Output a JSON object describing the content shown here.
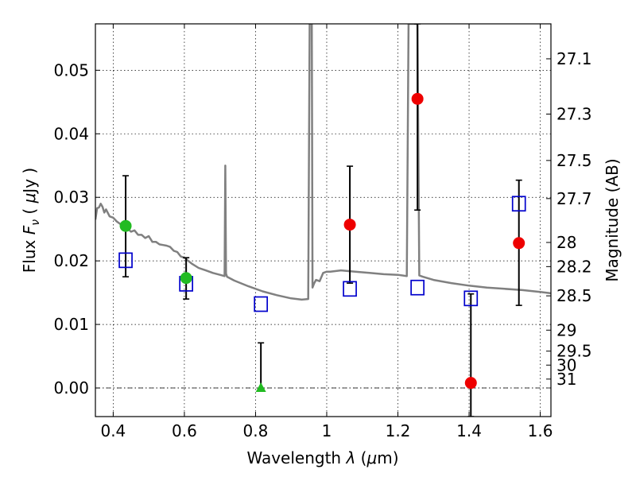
{
  "chart_data": {
    "type": "scatter",
    "xlabel": "Wavelength  λ (μm)",
    "ylabel": "Flux  F_ν  ( μJy )",
    "ylabel_parts": {
      "pre": "Flux ",
      "sym": "F",
      "sub": "ν",
      "post": "  ( ",
      "mu": "μ",
      "unit": "Jy )"
    },
    "xlabel_parts": {
      "pre": "Wavelength  ",
      "sym": "λ",
      "open": " (",
      "mu": "μ",
      "unit": "m)"
    },
    "y2label": "Magnitude (AB)",
    "xlim": [
      0.35,
      1.63
    ],
    "ylim": [
      -0.0045,
      0.0573
    ],
    "grid": true,
    "x_ticks": [
      {
        "value": 0.4,
        "label": "0.4"
      },
      {
        "value": 0.6,
        "label": "0.6"
      },
      {
        "value": 0.8,
        "label": "0.8"
      },
      {
        "value": 1.0,
        "label": "1"
      },
      {
        "value": 1.2,
        "label": "1.2"
      },
      {
        "value": 1.4,
        "label": "1.4"
      },
      {
        "value": 1.6,
        "label": "1.6"
      }
    ],
    "y_ticks": [
      {
        "value": 0.0,
        "label": "0.00"
      },
      {
        "value": 0.01,
        "label": "0.01"
      },
      {
        "value": 0.02,
        "label": "0.02"
      },
      {
        "value": 0.03,
        "label": "0.03"
      },
      {
        "value": 0.04,
        "label": "0.04"
      },
      {
        "value": 0.05,
        "label": "0.05"
      }
    ],
    "y2_ticks": [
      {
        "flux": 0.0518,
        "label": "27.1"
      },
      {
        "flux": 0.0431,
        "label": "27.3"
      },
      {
        "flux": 0.0358,
        "label": "27.5"
      },
      {
        "flux": 0.0298,
        "label": "27.7"
      },
      {
        "flux": 0.0229,
        "label": "28"
      },
      {
        "flux": 0.0191,
        "label": "28.2"
      },
      {
        "flux": 0.0145,
        "label": "28.5"
      },
      {
        "flux": 0.0091,
        "label": "29"
      },
      {
        "flux": 0.0058,
        "label": "29.5"
      },
      {
        "flux": 0.0036,
        "label": "30"
      },
      {
        "flux": 0.0014,
        "label": "31"
      }
    ],
    "model_spectrum": {
      "color": "#808080",
      "x": [
        0.35,
        0.355,
        0.36,
        0.365,
        0.37,
        0.375,
        0.38,
        0.39,
        0.4,
        0.41,
        0.42,
        0.43,
        0.44,
        0.45,
        0.46,
        0.47,
        0.48,
        0.49,
        0.5,
        0.51,
        0.52,
        0.53,
        0.54,
        0.55,
        0.56,
        0.57,
        0.58,
        0.59,
        0.6,
        0.62,
        0.64,
        0.66,
        0.68,
        0.7,
        0.713,
        0.715,
        0.717,
        0.72,
        0.74,
        0.78,
        0.82,
        0.86,
        0.9,
        0.93,
        0.948,
        0.952,
        0.954,
        0.956,
        0.958,
        0.96,
        0.965,
        0.97,
        0.98,
        0.99,
        1.0,
        1.01,
        1.04,
        1.08,
        1.12,
        1.16,
        1.2,
        1.225,
        1.23,
        1.235,
        1.24,
        1.245,
        1.25,
        1.255,
        1.26,
        1.27,
        1.3,
        1.35,
        1.4,
        1.45,
        1.5,
        1.55,
        1.6,
        1.63
      ],
      "y": [
        0.0265,
        0.0283,
        0.0284,
        0.029,
        0.0285,
        0.0276,
        0.0281,
        0.027,
        0.0268,
        0.0262,
        0.0258,
        0.025,
        0.0251,
        0.0246,
        0.0248,
        0.0241,
        0.0241,
        0.0236,
        0.0239,
        0.023,
        0.023,
        0.0226,
        0.0225,
        0.0224,
        0.0222,
        0.0216,
        0.0214,
        0.0207,
        0.0205,
        0.0196,
        0.0189,
        0.0185,
        0.0181,
        0.0178,
        0.0176,
        0.035,
        0.018,
        0.0175,
        0.0169,
        0.016,
        0.0152,
        0.0146,
        0.0141,
        0.0139,
        0.014,
        0.0573,
        0.0573,
        0.0573,
        0.0573,
        0.0158,
        0.0165,
        0.017,
        0.0168,
        0.0181,
        0.0183,
        0.0183,
        0.0185,
        0.0183,
        0.0181,
        0.0179,
        0.0178,
        0.0176,
        0.0573,
        0.0573,
        0.0573,
        0.0573,
        0.0573,
        0.0573,
        0.0177,
        0.0175,
        0.017,
        0.0165,
        0.0161,
        0.0158,
        0.0156,
        0.0154,
        0.0151,
        0.0149
      ]
    },
    "series": [
      {
        "marker": "square-open",
        "color": "#0000cc",
        "x": [
          0.435,
          0.605,
          0.815,
          1.065,
          1.255,
          1.405,
          1.54
        ],
        "y": [
          0.0201,
          0.0164,
          0.0132,
          0.0156,
          0.0158,
          0.0141,
          0.029
        ]
      },
      {
        "marker": "circle",
        "color": "#22bb22",
        "x": [
          0.435,
          0.605
        ],
        "y": [
          0.0255,
          0.0173
        ],
        "err_low": [
          0.008,
          0.0033
        ],
        "err_high": [
          0.0079,
          0.0032
        ]
      },
      {
        "marker": "triangle",
        "color": "#22bb22",
        "x": [
          0.815
        ],
        "y": [
          0.0
        ],
        "err_low": [
          0.0
        ],
        "err_high": [
          0.0071
        ]
      },
      {
        "marker": "circle",
        "color": "#ee0000",
        "x": [
          1.065,
          1.255,
          1.405,
          1.54
        ],
        "y": [
          0.0257,
          0.0455,
          0.0008,
          0.0228
        ],
        "err_low": [
          0.0092,
          0.0175,
          0.0053,
          0.0098
        ],
        "err_high": [
          0.0092,
          0.0118,
          0.014,
          0.0099
        ]
      }
    ]
  }
}
